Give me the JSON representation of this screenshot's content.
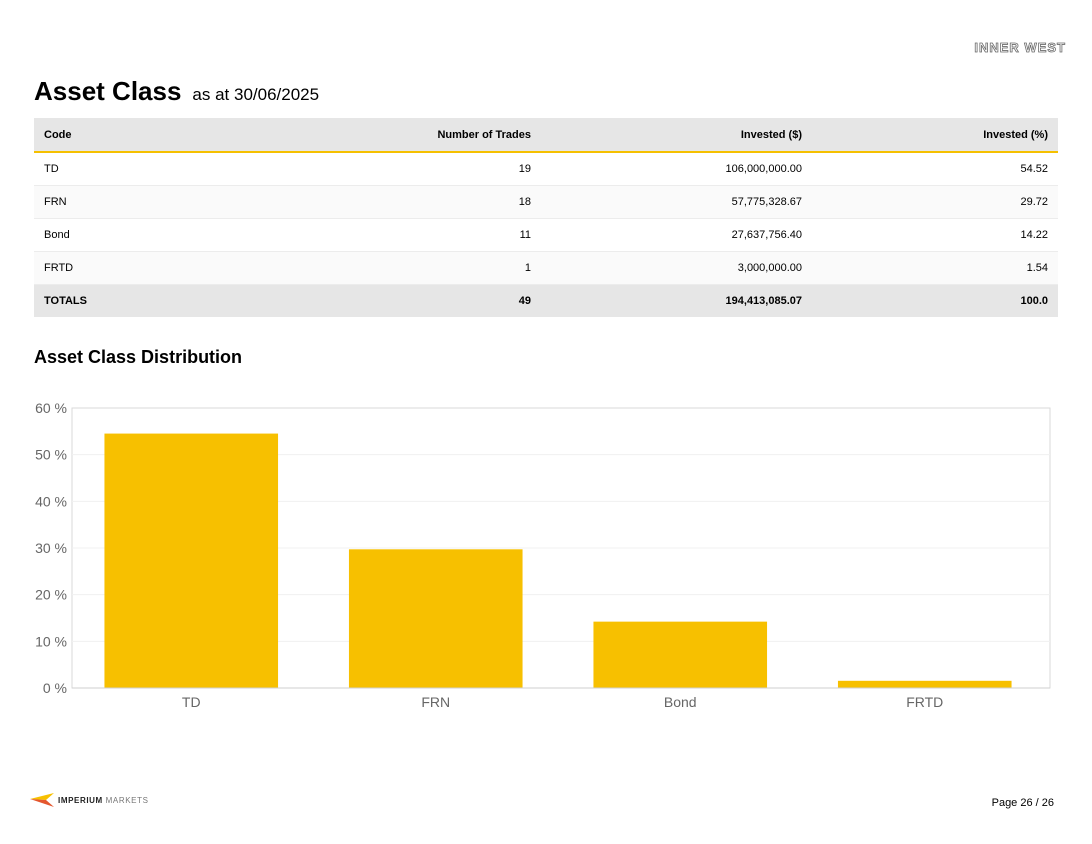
{
  "header": {
    "brand": "INNER WEST",
    "title": "Asset Class",
    "subtitle": "as at 30/06/2025"
  },
  "table": {
    "columns": [
      "Code",
      "Number of Trades",
      "Invested ($)",
      "Invested (%)"
    ],
    "rows": [
      {
        "code": "TD",
        "trades": "19",
        "invested": "106,000,000.00",
        "pct": "54.52"
      },
      {
        "code": "FRN",
        "trades": "18",
        "invested": "57,775,328.67",
        "pct": "29.72"
      },
      {
        "code": "Bond",
        "trades": "11",
        "invested": "27,637,756.40",
        "pct": "14.22"
      },
      {
        "code": "FRTD",
        "trades": "1",
        "invested": "3,000,000.00",
        "pct": "1.54"
      }
    ],
    "totals": {
      "label": "TOTALS",
      "trades": "49",
      "invested": "194,413,085.07",
      "pct": "100.0"
    }
  },
  "section": {
    "title": "Asset Class Distribution"
  },
  "chart_data": {
    "type": "bar",
    "categories": [
      "TD",
      "FRN",
      "Bond",
      "FRTD"
    ],
    "values": [
      54.52,
      29.72,
      14.22,
      1.54
    ],
    "ylim": [
      0,
      60
    ],
    "yticks": [
      0,
      10,
      20,
      30,
      40,
      50,
      60
    ],
    "ytick_labels": [
      "0 %",
      "10 %",
      "20 %",
      "30 %",
      "40 %",
      "50 %",
      "60 %"
    ],
    "grid": true,
    "bar_color": "#f7c000"
  },
  "footer": {
    "logo_bold": "IMPERIUM",
    "logo_light": "MARKETS",
    "page": "Page 26 / 26"
  }
}
